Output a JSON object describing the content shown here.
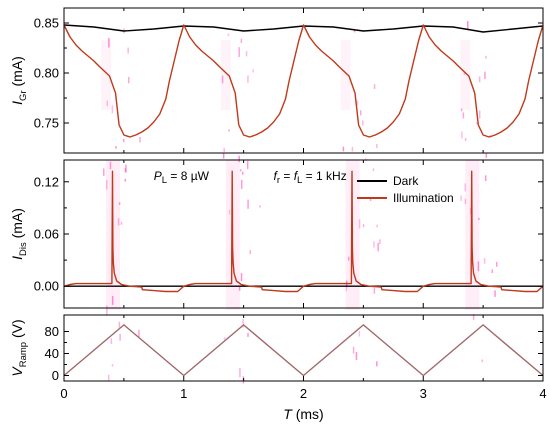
{
  "chart_data": {
    "type": "line",
    "shared_x": {
      "label_var": "T",
      "label_unit": "(ms)",
      "range": [
        0,
        4
      ],
      "ticks": [
        0,
        1,
        2,
        3,
        4
      ],
      "tick_labels": [
        "0",
        "1",
        "2",
        "3",
        "4"
      ]
    },
    "colors": {
      "dark": "#000000",
      "illumination": "#c0391b",
      "ramp": "#a0686a",
      "glow": "#ff4fb8"
    },
    "panels": [
      {
        "id": "top",
        "ylabel_var": "I",
        "ylabel_sub": "Gr",
        "ylabel_unit": " (mA)",
        "ylim": [
          0.72,
          0.865
        ],
        "ticks": [
          0.75,
          0.8,
          0.85
        ],
        "tick_labels": [
          "0.75",
          "0.80",
          "0.85"
        ],
        "series": [
          {
            "name": "Dark",
            "color_key": "dark",
            "x": [
              0,
              0.25,
              0.5,
              0.75,
              1.0,
              1.25,
              1.5,
              1.75,
              2.0,
              2.25,
              2.5,
              2.75,
              3.0,
              3.25,
              3.5,
              3.75,
              4.0
            ],
            "y": [
              0.848,
              0.846,
              0.842,
              0.844,
              0.847,
              0.846,
              0.842,
              0.844,
              0.847,
              0.846,
              0.842,
              0.844,
              0.847,
              0.846,
              0.841,
              0.844,
              0.847
            ]
          },
          {
            "name": "Illumination",
            "color_key": "illumination",
            "x": [
              0,
              0.05,
              0.1,
              0.15,
              0.2,
              0.25,
              0.3,
              0.38,
              0.43,
              0.46,
              0.5,
              0.55,
              0.6,
              0.65,
              0.7,
              0.75,
              0.8,
              0.85,
              0.88,
              0.92,
              0.96,
              1.0,
              1.05,
              1.1,
              1.15,
              1.2,
              1.25,
              1.3,
              1.38,
              1.43,
              1.46,
              1.5,
              1.55,
              1.6,
              1.65,
              1.7,
              1.75,
              1.8,
              1.85,
              1.88,
              1.92,
              1.96,
              2.0,
              2.05,
              2.1,
              2.15,
              2.2,
              2.25,
              2.3,
              2.38,
              2.43,
              2.46,
              2.5,
              2.55,
              2.6,
              2.65,
              2.7,
              2.75,
              2.8,
              2.85,
              2.88,
              2.92,
              2.96,
              3.0,
              3.05,
              3.1,
              3.15,
              3.2,
              3.25,
              3.3,
              3.38,
              3.43,
              3.46,
              3.5,
              3.55,
              3.6,
              3.65,
              3.7,
              3.75,
              3.8,
              3.85,
              3.88,
              3.92,
              3.96,
              4.0
            ],
            "y": [
              0.848,
              0.836,
              0.828,
              0.822,
              0.817,
              0.812,
              0.806,
              0.797,
              0.78,
              0.748,
              0.738,
              0.736,
              0.738,
              0.741,
              0.745,
              0.751,
              0.759,
              0.774,
              0.792,
              0.812,
              0.832,
              0.848,
              0.836,
              0.828,
              0.822,
              0.817,
              0.812,
              0.806,
              0.797,
              0.78,
              0.748,
              0.738,
              0.736,
              0.738,
              0.741,
              0.745,
              0.751,
              0.759,
              0.774,
              0.792,
              0.812,
              0.832,
              0.848,
              0.836,
              0.828,
              0.822,
              0.817,
              0.812,
              0.806,
              0.797,
              0.78,
              0.748,
              0.738,
              0.736,
              0.738,
              0.741,
              0.745,
              0.751,
              0.759,
              0.774,
              0.792,
              0.812,
              0.832,
              0.848,
              0.836,
              0.828,
              0.822,
              0.817,
              0.812,
              0.806,
              0.797,
              0.78,
              0.748,
              0.738,
              0.736,
              0.738,
              0.741,
              0.745,
              0.751,
              0.759,
              0.774,
              0.792,
              0.812,
              0.832,
              0.848
            ]
          }
        ]
      },
      {
        "id": "middle",
        "ylabel_var": "I",
        "ylabel_sub": "Dis",
        "ylabel_unit": " (mA)",
        "ylim": [
          -0.025,
          0.145
        ],
        "ticks": [
          0.0,
          0.06,
          0.12
        ],
        "tick_labels": [
          "0.00",
          "0.06",
          "0.12"
        ],
        "annotations": [
          {
            "var": "P",
            "sub": "L",
            "rest": " = 8 µW",
            "x": 1.0,
            "y": 0.122
          },
          {
            "var": "f",
            "sub": "r",
            "mid": " = ",
            "var2": "f",
            "sub2": "L",
            "rest": " = 1 kHz",
            "x": 2.0,
            "y": 0.122
          }
        ],
        "legend": {
          "placement": "top-right",
          "entries": [
            "Dark",
            "Illumination"
          ]
        },
        "series": [
          {
            "name": "Dark",
            "color_key": "dark",
            "x": [
              0,
              4.0
            ],
            "y": [
              0.0,
              0.0
            ]
          },
          {
            "name": "Illumination",
            "color_key": "illumination",
            "x": [
              0,
              0.05,
              0.1,
              0.15,
              0.2,
              0.3,
              0.4,
              0.405,
              0.408,
              0.412,
              0.42,
              0.44,
              0.48,
              0.55,
              0.65,
              0.655,
              0.75,
              0.85,
              0.95,
              1.0,
              1.05,
              1.1,
              1.15,
              1.2,
              1.3,
              1.4,
              1.405,
              1.408,
              1.412,
              1.42,
              1.44,
              1.48,
              1.55,
              1.65,
              1.655,
              1.75,
              1.85,
              1.95,
              2.0,
              2.05,
              2.1,
              2.15,
              2.2,
              2.3,
              2.4,
              2.405,
              2.408,
              2.412,
              2.42,
              2.44,
              2.48,
              2.55,
              2.65,
              2.655,
              2.75,
              2.85,
              2.95,
              3.0,
              3.05,
              3.1,
              3.15,
              3.2,
              3.3,
              3.4,
              3.405,
              3.408,
              3.412,
              3.42,
              3.44,
              3.48,
              3.55,
              3.65,
              3.655,
              3.75,
              3.85,
              3.95,
              4.0
            ],
            "y": [
              0.0,
              0.002,
              0.003,
              0.003,
              0.003,
              0.003,
              0.003,
              0.132,
              0.045,
              0.028,
              0.015,
              0.006,
              0.002,
              0.0,
              -0.001,
              -0.004,
              -0.005,
              -0.006,
              -0.006,
              0.0,
              0.002,
              0.003,
              0.003,
              0.003,
              0.003,
              0.003,
              0.132,
              0.045,
              0.028,
              0.015,
              0.006,
              0.002,
              0.0,
              -0.001,
              -0.004,
              -0.005,
              -0.006,
              -0.006,
              0.0,
              0.002,
              0.003,
              0.003,
              0.003,
              0.003,
              0.003,
              0.132,
              0.045,
              0.028,
              0.015,
              0.006,
              0.002,
              0.0,
              -0.001,
              -0.004,
              -0.005,
              -0.006,
              -0.006,
              0.0,
              0.002,
              0.003,
              0.003,
              0.003,
              0.003,
              0.003,
              0.132,
              0.045,
              0.028,
              0.015,
              0.006,
              0.002,
              0.0,
              -0.001,
              -0.004,
              -0.005,
              -0.006,
              -0.006,
              0.0
            ]
          }
        ]
      },
      {
        "id": "bottom",
        "ylabel_var": "V",
        "ylabel_sub": "Ramp",
        "ylabel_unit": " (V)",
        "ylim": [
          -10,
          110
        ],
        "ticks": [
          0,
          40,
          80
        ],
        "tick_labels": [
          "0",
          "40",
          "80"
        ],
        "series": [
          {
            "name": "Ramp",
            "color_key": "ramp",
            "x": [
              0,
              0.5,
              1.0,
              1.5,
              2.0,
              2.5,
              3.0,
              3.5,
              4.0
            ],
            "y": [
              0,
              92,
              0,
              92,
              0,
              92,
              0,
              92,
              0
            ]
          }
        ]
      }
    ]
  }
}
